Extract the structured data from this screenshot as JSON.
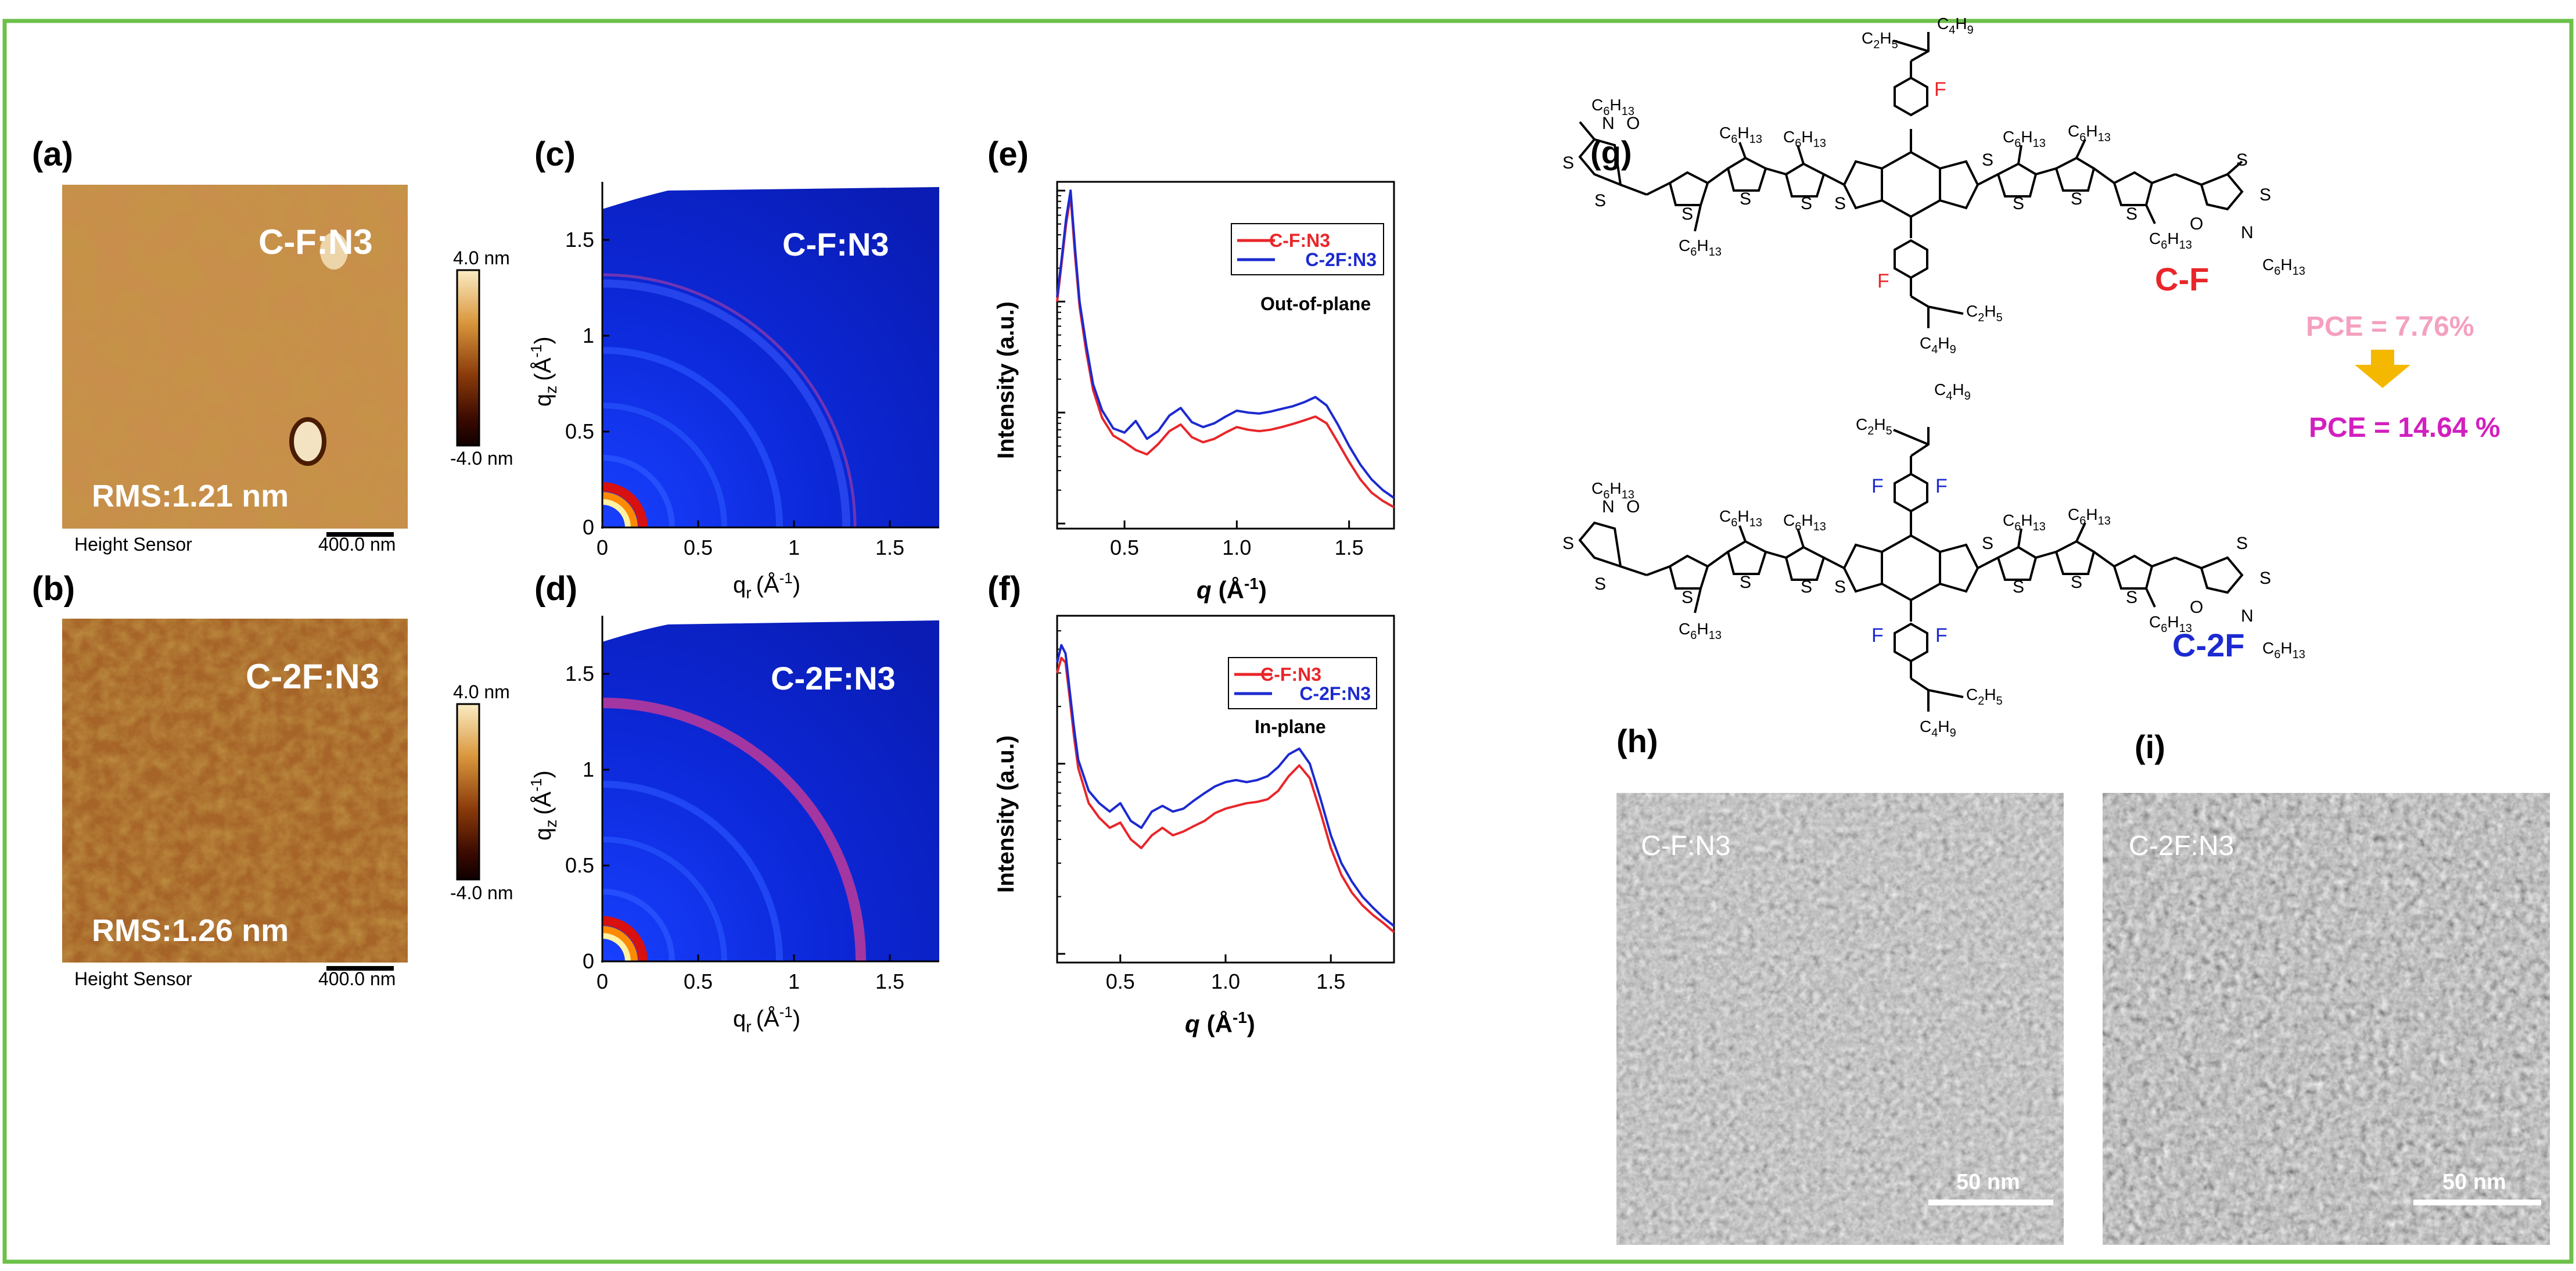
{
  "colors": {
    "border": "#6cc04a",
    "red_series": "#e8262a",
    "blue_series": "#1c2ad0",
    "pce_low": "#f4a0c0",
    "pce_high": "#d21fbf",
    "arrow": "#f5b800",
    "label_cf": "#e8262a",
    "label_c2f": "#1c2ad0"
  },
  "panels": {
    "a": {
      "label": "(a)",
      "sample": "C-F:N3",
      "rms": "RMS:1.21 nm",
      "sensor": "Height Sensor",
      "scalebar": "400.0 nm",
      "colorbar_max": "4.0 nm",
      "colorbar_min": "-4.0 nm"
    },
    "b": {
      "label": "(b)",
      "sample": "C-2F:N3",
      "rms": "RMS:1.26 nm",
      "sensor": "Height Sensor",
      "scalebar": "400.0 nm",
      "colorbar_max": "4.0 nm",
      "colorbar_min": "-4.0 nm"
    },
    "c": {
      "label": "(c)",
      "sample": "C-F:N3",
      "ylabel": "q",
      "ylabel_sub": "z",
      "xlabel": "q",
      "xlabel_sub": "r",
      "unit": "(Å",
      "unit_sup": "-1",
      "unit_close": ")",
      "yticks": [
        "0",
        "0.5",
        "1",
        "1.5"
      ],
      "xticks": [
        "0",
        "0.5",
        "1",
        "1.5"
      ]
    },
    "d": {
      "label": "(d)",
      "sample": "C-2F:N3",
      "ylabel": "q",
      "ylabel_sub": "z",
      "xlabel": "q",
      "xlabel_sub": "r",
      "unit": "(Å",
      "unit_sup": "-1",
      "unit_close": ")",
      "yticks": [
        "0",
        "0.5",
        "1",
        "1.5"
      ],
      "xticks": [
        "0",
        "0.5",
        "1",
        "1.5"
      ]
    },
    "g": {
      "label": "(g)",
      "cf_name": "C-F",
      "c2f_name": "C-2F",
      "pce_cf": "PCE = 7.76%",
      "pce_c2f": "PCE = 14.64 %",
      "atom_S": "S",
      "atom_N": "N",
      "atom_O": "O",
      "atom_F": "F",
      "sub_c6h13_main": "C",
      "sub_c6h13_sub1": "6",
      "sub_c6h13_h": "H",
      "sub_c6h13_sub2": "13",
      "sub_c4h9_sub1": "4",
      "sub_c4h9_sub2": "9",
      "sub_c2h5_sub1": "2",
      "sub_c2h5_sub2": "5"
    },
    "h": {
      "label": "(h)",
      "sample": "C-F:N3",
      "scalebar": "50 nm"
    },
    "i": {
      "label": "(i)",
      "sample": "C-2F:N3",
      "scalebar": "50 nm"
    }
  },
  "chart_data": [
    {
      "id": "e",
      "type": "line",
      "panel_label": "(e)",
      "title": "Out-of-plane",
      "xlabel": "q (Å-1)",
      "xlabel_parts": {
        "q": "q",
        "unit": "(Å",
        "sup": "-1",
        "close": ")"
      },
      "ylabel": "Intensity (a.u.)",
      "yscale": "log",
      "xlim": [
        0.2,
        1.7
      ],
      "ylim": [
        0.9,
        1200
      ],
      "xticks": [
        "0.5",
        "1.0",
        "1.5"
      ],
      "xtick_values": [
        0.5,
        1.0,
        1.5
      ],
      "x": [
        0.2,
        0.22,
        0.24,
        0.26,
        0.28,
        0.3,
        0.33,
        0.36,
        0.4,
        0.45,
        0.5,
        0.55,
        0.6,
        0.65,
        0.7,
        0.75,
        0.8,
        0.85,
        0.9,
        0.95,
        1.0,
        1.05,
        1.1,
        1.15,
        1.2,
        1.25,
        1.3,
        1.35,
        1.4,
        1.45,
        1.5,
        1.55,
        1.6,
        1.65,
        1.7
      ],
      "series": [
        {
          "name": "C-F:N3",
          "color": "#e8262a",
          "values": [
            100,
            220,
            500,
            900,
            260,
            90,
            35,
            16,
            9,
            6.2,
            5.4,
            4.6,
            4.2,
            5.2,
            6.8,
            7.8,
            6.0,
            5.4,
            5.8,
            6.6,
            7.4,
            7.0,
            6.8,
            7.0,
            7.4,
            7.9,
            8.5,
            9.2,
            8.0,
            5.4,
            3.6,
            2.5,
            1.9,
            1.6,
            1.4
          ]
        },
        {
          "name": "C-2F:N3",
          "color": "#1c2ad0",
          "values": [
            110,
            240,
            560,
            1000,
            300,
            100,
            40,
            18,
            10.5,
            7.2,
            6.6,
            8.4,
            5.8,
            6.8,
            9.4,
            11.0,
            8.2,
            7.4,
            8.0,
            9.2,
            10.4,
            10.0,
            9.8,
            10.2,
            10.8,
            11.4,
            12.4,
            13.8,
            11.6,
            7.8,
            5.0,
            3.4,
            2.5,
            2.0,
            1.7
          ]
        }
      ]
    },
    {
      "id": "f",
      "type": "line",
      "panel_label": "(f)",
      "title": "In-plane",
      "xlabel": "q (Å-1)",
      "xlabel_parts": {
        "q": "q",
        "unit": "(Å",
        "sup": "-1",
        "close": ")"
      },
      "ylabel": "Intensity (a.u.)",
      "yscale": "log",
      "xlim": [
        0.2,
        1.8
      ],
      "ylim": [
        0.9,
        60
      ],
      "xticks": [
        "0.5",
        "1.0",
        "1.5"
      ],
      "xtick_values": [
        0.5,
        1.0,
        1.5
      ],
      "x": [
        0.2,
        0.22,
        0.24,
        0.26,
        0.28,
        0.3,
        0.35,
        0.4,
        0.45,
        0.5,
        0.55,
        0.6,
        0.65,
        0.7,
        0.75,
        0.8,
        0.85,
        0.9,
        0.95,
        1.0,
        1.05,
        1.1,
        1.15,
        1.2,
        1.25,
        1.3,
        1.35,
        1.4,
        1.45,
        1.5,
        1.55,
        1.6,
        1.65,
        1.7,
        1.75,
        1.8
      ],
      "series": [
        {
          "name": "C-F:N3",
          "color": "#e8262a",
          "values": [
            30,
            36,
            34,
            22,
            14,
            9.5,
            6.2,
            5.2,
            4.6,
            4.9,
            4.0,
            3.6,
            4.2,
            4.6,
            4.2,
            4.4,
            4.7,
            5.0,
            5.5,
            5.8,
            6.0,
            6.2,
            6.3,
            6.5,
            7.2,
            8.6,
            9.8,
            8.4,
            5.6,
            3.6,
            2.6,
            2.1,
            1.8,
            1.6,
            1.45,
            1.3
          ]
        },
        {
          "name": "C-2F:N3",
          "color": "#1c2ad0",
          "values": [
            34,
            42,
            38,
            24,
            15.5,
            10.5,
            7.2,
            6.2,
            5.6,
            6.2,
            5.0,
            4.6,
            5.6,
            6.0,
            5.6,
            5.8,
            6.4,
            7.0,
            7.6,
            8.0,
            8.2,
            8.0,
            8.2,
            8.6,
            9.6,
            11.2,
            12.0,
            10.0,
            6.6,
            4.2,
            3.0,
            2.4,
            2.0,
            1.75,
            1.55,
            1.4
          ]
        }
      ]
    }
  ]
}
